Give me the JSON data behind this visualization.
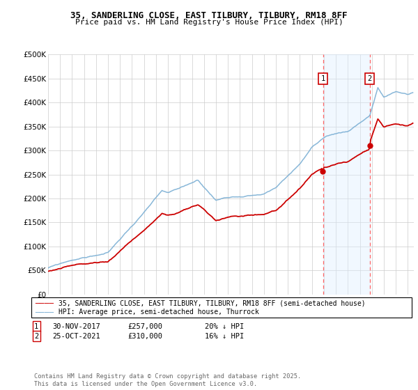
{
  "title": "35, SANDERLING CLOSE, EAST TILBURY, TILBURY, RM18 8FF",
  "subtitle": "Price paid vs. HM Land Registry's House Price Index (HPI)",
  "legend_line1": "35, SANDERLING CLOSE, EAST TILBURY, TILBURY, RM18 8FF (semi-detached house)",
  "legend_line2": "HPI: Average price, semi-detached house, Thurrock",
  "annotation1_date": "30-NOV-2017",
  "annotation1_price": "£257,000",
  "annotation1_hpi": "20% ↓ HPI",
  "annotation2_date": "25-OCT-2021",
  "annotation2_price": "£310,000",
  "annotation2_hpi": "16% ↓ HPI",
  "footnote": "Contains HM Land Registry data © Crown copyright and database right 2025.\nThis data is licensed under the Open Government Licence v3.0.",
  "sale1_year": 2017.92,
  "sale1_value": 257000,
  "sale2_year": 2021.82,
  "sale2_value": 310000,
  "red_color": "#cc0000",
  "blue_color": "#7bafd4",
  "shade_color": "#ddeeff",
  "background_color": "#ffffff",
  "grid_color": "#cccccc",
  "ylim_min": 0,
  "ylim_max": 500000,
  "xlim_min": 1995,
  "xlim_max": 2025.5
}
